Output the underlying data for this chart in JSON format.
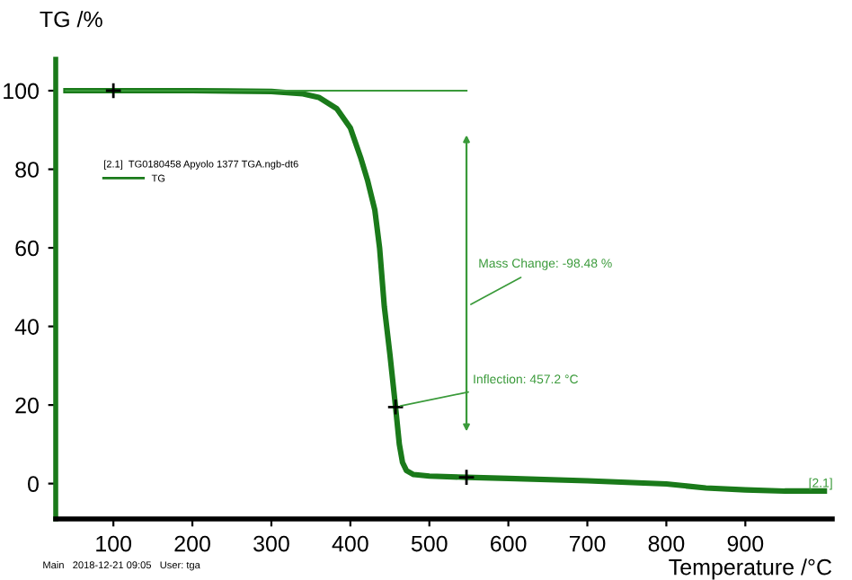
{
  "chart_data": {
    "type": "line",
    "xlabel": "Temperature /°C",
    "ylabel": "TG /%",
    "legend_title": "[2.1]  TG0180458 Apyolo 1377 TGA.ngb-dt6",
    "x": [
      40,
      100,
      200,
      300,
      340,
      360,
      383,
      400,
      413,
      422,
      431,
      437,
      443,
      450,
      457.2,
      462,
      466,
      471,
      480,
      500,
      547,
      600,
      700,
      800,
      850,
      900,
      950,
      1000
    ],
    "series": [
      {
        "name": "TG",
        "color": "#1a7a1a",
        "values": [
          100,
          100,
          100,
          99.8,
          99.2,
          98.3,
          95.4,
          90.5,
          83,
          77,
          69.6,
          60,
          45,
          33,
          19.5,
          10,
          5.4,
          3.3,
          2.3,
          1.9,
          1.6,
          1.3,
          0.7,
          -0.1,
          -1.1,
          -1.6,
          -1.9,
          -1.9
        ]
      }
    ],
    "xlim": [
      27,
      1010
    ],
    "ylim": [
      -9,
      108
    ],
    "xticks": [
      100,
      200,
      300,
      400,
      500,
      600,
      700,
      800,
      900
    ],
    "yticks": [
      0,
      20,
      40,
      60,
      80,
      100
    ],
    "ref_lines": [
      {
        "axis": "y",
        "value": 100,
        "color": "#3a9a3a"
      }
    ],
    "grid": false,
    "legend": "top left",
    "marker": "none",
    "line_style": "solid",
    "annotations": [
      {
        "text": "Inflection: 457.2 °C",
        "x": 457.2,
        "y": 19.5
      },
      "Mass Change: -98.48 %",
      {
        "text": "[2.1]",
        "x": 1000,
        "y": -1.9
      },
      "Main   2018-12-21 09:05   User: tga"
    ]
  }
}
